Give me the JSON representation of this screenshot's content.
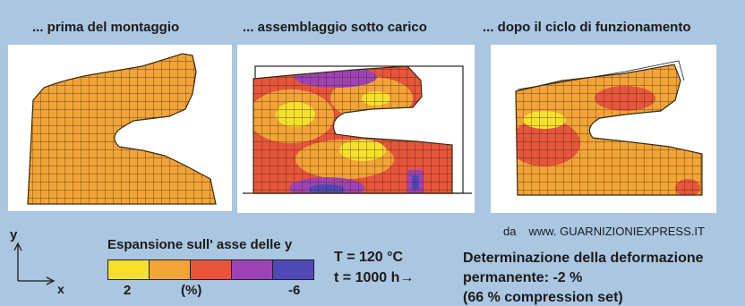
{
  "titles": {
    "before": "... prima del montaggio",
    "under_load": "... assemblaggio sotto carico",
    "after": "... dopo il ciclo di funzionamento"
  },
  "credit": {
    "prefix": "da",
    "site": "www. GUARNIZIONIEXPRESS.IT"
  },
  "axes": {
    "y": "y",
    "x": "x"
  },
  "legend": {
    "title": "Espansione sull' asse delle y",
    "colors": [
      "#f6e12a",
      "#f2a436",
      "#e8553a",
      "#9e43b5",
      "#5148b8"
    ],
    "min_label": "2",
    "unit_label": "(%)",
    "max_label": "-6"
  },
  "conditions": {
    "temperature": "T  = 120 °C",
    "time": "t   = 1000 h→"
  },
  "result": {
    "line1": "Determinazione della deformazione",
    "line2": "permanente: -2 %",
    "line3": "(66 % compression set)"
  },
  "colors": {
    "background": "#aac6e0",
    "panel": "#ffffff",
    "mesh_base": "#f2a436",
    "mesh_line": "#3a2a10"
  }
}
